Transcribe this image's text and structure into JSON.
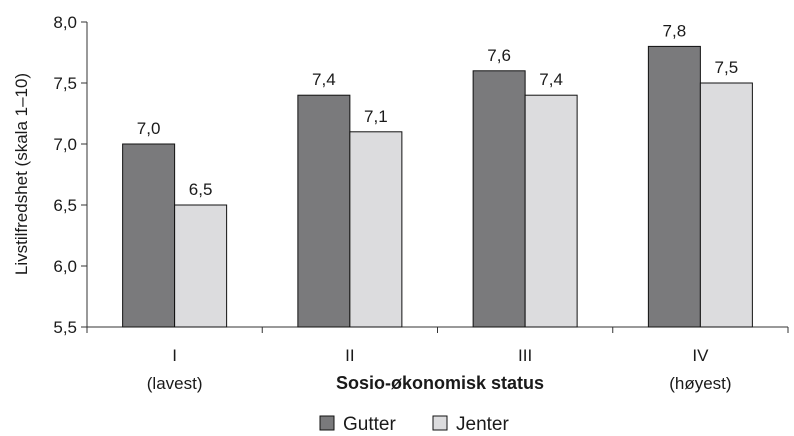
{
  "chart_data": {
    "type": "bar",
    "title": "",
    "xlabel": "Sosio-økonomisk status",
    "ylabel": "Livstilfredshet (skala 1–10)",
    "ylim": [
      5.5,
      8.0
    ],
    "yticks": [
      "5,5",
      "6,0",
      "6,5",
      "7,0",
      "7,5",
      "8,0"
    ],
    "ytick_values": [
      5.5,
      6.0,
      6.5,
      7.0,
      7.5,
      8.0
    ],
    "categories": [
      "I",
      "II",
      "III",
      "IV"
    ],
    "category_sublabels": [
      "(lavest)",
      "",
      "",
      "(høyest)"
    ],
    "series": [
      {
        "name": "Gutter",
        "color": "#7a7a7c",
        "values": [
          7.0,
          7.4,
          7.6,
          7.8
        ],
        "labels": [
          "7,0",
          "7,4",
          "7,6",
          "7,8"
        ]
      },
      {
        "name": "Jenter",
        "color": "#dcdcde",
        "values": [
          6.5,
          7.1,
          7.4,
          7.5
        ],
        "labels": [
          "6,5",
          "7,1",
          "7,4",
          "7,5"
        ]
      }
    ],
    "grid": false,
    "legend_position": "bottom"
  }
}
